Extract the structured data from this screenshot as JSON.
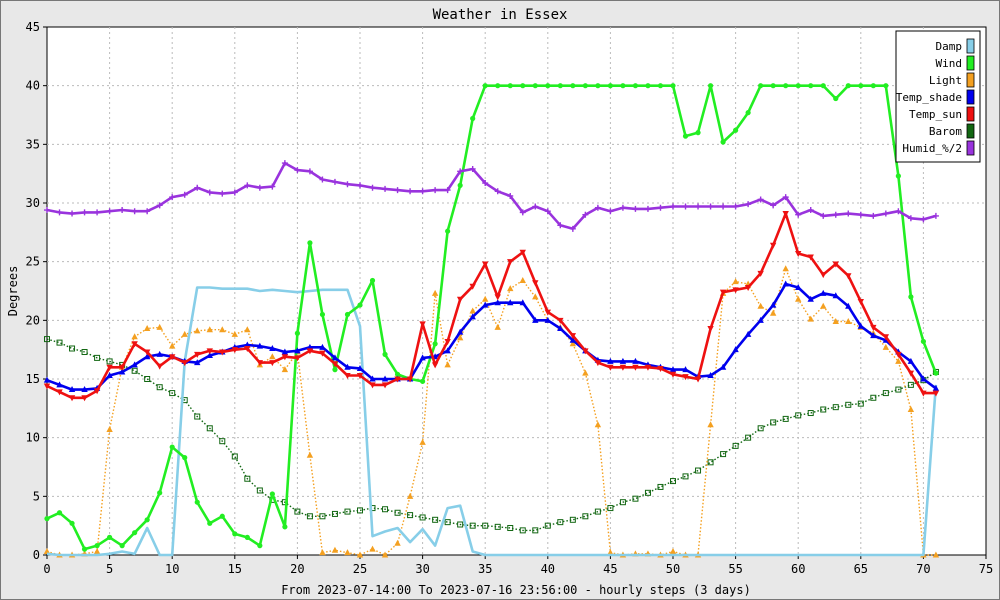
{
  "chart_data": {
    "type": "line",
    "title": "Weather in Essex",
    "xlabel": "From 2023-07-14:00 To 2023-07-16 23:56:00 - hourly steps (3 days)",
    "ylabel": "Degrees",
    "xlim": [
      0,
      75
    ],
    "ylim": [
      0,
      45
    ],
    "xticks": [
      0,
      5,
      10,
      15,
      20,
      25,
      30,
      35,
      40,
      45,
      50,
      55,
      60,
      65,
      70,
      75
    ],
    "yticks": [
      0,
      5,
      10,
      15,
      20,
      25,
      30,
      35,
      40,
      45
    ],
    "grid": true,
    "legend_position": "top-right",
    "series": [
      {
        "name": "Damp",
        "color": "#87cee8",
        "style": "solid",
        "marker": "none",
        "x": [
          0,
          1,
          2,
          3,
          4,
          5,
          6,
          7,
          8,
          9,
          10,
          11,
          12,
          13,
          14,
          15,
          16,
          17,
          18,
          19,
          20,
          21,
          22,
          23,
          24,
          25,
          26,
          27,
          28,
          29,
          30,
          31,
          32,
          33,
          34,
          35,
          36,
          37,
          38,
          39,
          40,
          41,
          42,
          43,
          44,
          45,
          46,
          47,
          48,
          49,
          50,
          51,
          52,
          53,
          54,
          55,
          56,
          57,
          58,
          59,
          60,
          61,
          62,
          63,
          64,
          65,
          66,
          67,
          68,
          69,
          70,
          71
        ],
        "y": [
          0.1,
          0,
          0,
          0,
          0,
          0.1,
          0.3,
          0.1,
          2.3,
          0,
          0,
          16.5,
          22.8,
          22.8,
          22.7,
          22.7,
          22.7,
          22.5,
          22.6,
          22.5,
          22.4,
          22.5,
          22.6,
          22.6,
          22.6,
          19.5,
          1.6,
          2.0,
          2.3,
          1.1,
          2.2,
          0.8,
          4.0,
          4.2,
          0.3,
          0,
          0,
          0,
          0,
          0,
          0,
          0,
          0,
          0,
          0,
          0,
          0,
          0,
          0,
          0,
          0,
          0,
          0,
          0,
          0,
          0,
          0,
          0,
          0,
          0,
          0,
          0,
          0,
          0,
          0,
          0,
          0,
          0,
          0,
          0,
          0,
          14.5
        ]
      },
      {
        "name": "Wind",
        "color": "#22ee22",
        "style": "solid",
        "marker": "circle",
        "x": [
          0,
          1,
          2,
          3,
          4,
          5,
          6,
          7,
          8,
          9,
          10,
          11,
          12,
          13,
          14,
          15,
          16,
          17,
          18,
          19,
          20,
          21,
          22,
          23,
          24,
          25,
          26,
          27,
          28,
          29,
          30,
          31,
          32,
          33,
          34,
          35,
          36,
          37,
          38,
          39,
          40,
          41,
          42,
          43,
          44,
          45,
          46,
          47,
          48,
          49,
          50,
          51,
          52,
          53,
          54,
          55,
          56,
          57,
          58,
          59,
          60,
          61,
          62,
          63,
          64,
          65,
          66,
          67,
          68,
          69,
          70,
          71
        ],
        "y": [
          3.1,
          3.6,
          2.7,
          0.5,
          0.8,
          1.5,
          0.8,
          1.9,
          3.0,
          5.3,
          9.2,
          8.3,
          4.5,
          2.7,
          3.3,
          1.8,
          1.5,
          0.8,
          5.2,
          2.4,
          18.9,
          26.6,
          20.5,
          15.8,
          20.5,
          21.3,
          23.4,
          17.1,
          15.4,
          15.0,
          14.8,
          18.0,
          27.6,
          31.5,
          37.2,
          40,
          40,
          40,
          40,
          40,
          40,
          40,
          40,
          40,
          40,
          40,
          40,
          40,
          40,
          40,
          40,
          35.7,
          36.0,
          40,
          35.2,
          36.2,
          37.7,
          40,
          40,
          40,
          40,
          40,
          40,
          38.9,
          40,
          40,
          40,
          40,
          32.3,
          22.0,
          18.2,
          15.5
        ]
      },
      {
        "name": "Light",
        "color": "#f4a020",
        "style": "dotted",
        "marker": "triangle",
        "x": [
          0,
          1,
          2,
          3,
          4,
          5,
          6,
          7,
          8,
          9,
          10,
          11,
          12,
          13,
          14,
          15,
          16,
          17,
          18,
          19,
          20,
          21,
          22,
          23,
          24,
          25,
          26,
          27,
          28,
          29,
          30,
          31,
          32,
          33,
          34,
          35,
          36,
          37,
          38,
          39,
          40,
          41,
          42,
          43,
          44,
          45,
          46,
          47,
          48,
          49,
          50,
          51,
          52,
          53,
          54,
          55,
          56,
          57,
          58,
          59,
          60,
          61,
          62,
          63,
          64,
          65,
          66,
          67,
          68,
          69,
          70,
          71
        ],
        "y": [
          0.3,
          0,
          0,
          0.1,
          0.3,
          10.7,
          16.0,
          18.6,
          19.3,
          19.4,
          17.8,
          18.8,
          19.1,
          19.2,
          19.2,
          18.8,
          19.2,
          16.2,
          16.9,
          15.8,
          17.3,
          8.5,
          0.2,
          0.4,
          0.2,
          0,
          0.5,
          0,
          1.0,
          5.0,
          9.6,
          22.3,
          16.2,
          18.5,
          20.8,
          21.8,
          19.4,
          22.7,
          23.4,
          22.0,
          20.0,
          19.4,
          18.0,
          15.5,
          11.1,
          0.2,
          0,
          0.1,
          0.1,
          0,
          0.3,
          0,
          0,
          11.1,
          22.3,
          23.3,
          23.1,
          21.2,
          20.6,
          24.4,
          21.8,
          20.1,
          21.2,
          19.9,
          19.9,
          19.4,
          18.9,
          17.7,
          16.5,
          12.4,
          0,
          0
        ]
      },
      {
        "name": "Temp_shade",
        "color": "#0000ee",
        "style": "solid",
        "marker": "triangle",
        "x": [
          0,
          1,
          2,
          3,
          4,
          5,
          6,
          7,
          8,
          9,
          10,
          11,
          12,
          13,
          14,
          15,
          16,
          17,
          18,
          19,
          20,
          21,
          22,
          23,
          24,
          25,
          26,
          27,
          28,
          29,
          30,
          31,
          32,
          33,
          34,
          35,
          36,
          37,
          38,
          39,
          40,
          41,
          42,
          43,
          44,
          45,
          46,
          47,
          48,
          49,
          50,
          51,
          52,
          53,
          54,
          55,
          56,
          57,
          58,
          59,
          60,
          61,
          62,
          63,
          64,
          65,
          66,
          67,
          68,
          69,
          70,
          71
        ],
        "y": [
          14.9,
          14.5,
          14.1,
          14.1,
          14.2,
          15.3,
          15.6,
          16.2,
          16.9,
          17.1,
          16.9,
          16.5,
          16.4,
          17.0,
          17.3,
          17.7,
          17.9,
          17.8,
          17.6,
          17.3,
          17.4,
          17.7,
          17.7,
          16.8,
          16.0,
          15.9,
          15.0,
          15.0,
          15.0,
          15.0,
          16.8,
          16.9,
          17.4,
          19.0,
          20.3,
          21.3,
          21.5,
          21.5,
          21.5,
          20.0,
          20.0,
          19.3,
          18.3,
          17.4,
          16.6,
          16.5,
          16.5,
          16.5,
          16.2,
          16.0,
          15.8,
          15.8,
          15.2,
          15.3,
          16.0,
          17.5,
          18.8,
          20.0,
          21.3,
          23.1,
          22.8,
          21.8,
          22.3,
          22.1,
          21.2,
          19.5,
          18.7,
          18.3,
          17.3,
          16.5,
          15.0,
          14.2
        ]
      },
      {
        "name": "Temp_sun",
        "color": "#ee1111",
        "style": "solid",
        "marker": "triangle-down",
        "x": [
          0,
          1,
          2,
          3,
          4,
          5,
          6,
          7,
          8,
          9,
          10,
          11,
          12,
          13,
          14,
          15,
          16,
          17,
          18,
          19,
          20,
          21,
          22,
          23,
          24,
          25,
          26,
          27,
          28,
          29,
          30,
          31,
          32,
          33,
          34,
          35,
          36,
          37,
          38,
          39,
          40,
          41,
          42,
          43,
          44,
          45,
          46,
          47,
          48,
          49,
          50,
          51,
          52,
          53,
          54,
          55,
          56,
          57,
          58,
          59,
          60,
          61,
          62,
          63,
          64,
          65,
          66,
          67,
          68,
          69,
          70,
          71
        ],
        "y": [
          14.4,
          13.9,
          13.4,
          13.4,
          14.0,
          16.0,
          16.0,
          18.0,
          17.3,
          16.1,
          16.9,
          16.4,
          17.1,
          17.4,
          17.3,
          17.5,
          17.6,
          16.4,
          16.4,
          16.9,
          16.8,
          17.4,
          17.2,
          16.3,
          15.3,
          15.3,
          14.5,
          14.5,
          15.0,
          15.0,
          19.7,
          16.2,
          18.2,
          21.8,
          22.9,
          24.8,
          22.0,
          25.0,
          25.8,
          23.2,
          20.7,
          20.0,
          18.7,
          17.4,
          16.4,
          16.0,
          16.0,
          16.0,
          16.0,
          15.9,
          15.4,
          15.2,
          15.0,
          19.3,
          22.4,
          22.6,
          22.8,
          24.0,
          26.4,
          29.1,
          25.7,
          25.4,
          23.9,
          24.8,
          23.8,
          21.6,
          19.4,
          18.6,
          17.1,
          15.5,
          13.8,
          13.8
        ]
      },
      {
        "name": "Barom",
        "color": "#116611",
        "style": "dotted",
        "marker": "square",
        "x": [
          0,
          1,
          2,
          3,
          4,
          5,
          6,
          7,
          8,
          9,
          10,
          11,
          12,
          13,
          14,
          15,
          16,
          17,
          18,
          19,
          20,
          21,
          22,
          23,
          24,
          25,
          26,
          27,
          28,
          29,
          30,
          31,
          32,
          33,
          34,
          35,
          36,
          37,
          38,
          39,
          40,
          41,
          42,
          43,
          44,
          45,
          46,
          47,
          48,
          49,
          50,
          51,
          52,
          53,
          54,
          55,
          56,
          57,
          58,
          59,
          60,
          61,
          62,
          63,
          64,
          65,
          66,
          67,
          68,
          69,
          70,
          71
        ],
        "y": [
          18.4,
          18.1,
          17.6,
          17.3,
          16.8,
          16.5,
          16.2,
          15.7,
          15.0,
          14.3,
          13.8,
          13.2,
          11.8,
          10.8,
          9.7,
          8.4,
          6.5,
          5.5,
          4.7,
          4.5,
          3.7,
          3.3,
          3.3,
          3.5,
          3.7,
          3.8,
          4.0,
          3.9,
          3.6,
          3.4,
          3.2,
          3.0,
          2.8,
          2.6,
          2.5,
          2.5,
          2.4,
          2.3,
          2.1,
          2.1,
          2.5,
          2.8,
          3.0,
          3.3,
          3.7,
          4.0,
          4.5,
          4.8,
          5.3,
          5.8,
          6.3,
          6.7,
          7.2,
          7.9,
          8.6,
          9.3,
          10.0,
          10.8,
          11.3,
          11.6,
          11.9,
          12.1,
          12.4,
          12.6,
          12.8,
          12.9,
          13.4,
          13.8,
          14.1,
          14.5,
          14.9,
          15.6
        ]
      },
      {
        "name": "Humid_%/2",
        "color": "#9933dd",
        "style": "solid",
        "marker": "cross",
        "x": [
          0,
          1,
          2,
          3,
          4,
          5,
          6,
          7,
          8,
          9,
          10,
          11,
          12,
          13,
          14,
          15,
          16,
          17,
          18,
          19,
          20,
          21,
          22,
          23,
          24,
          25,
          26,
          27,
          28,
          29,
          30,
          31,
          32,
          33,
          34,
          35,
          36,
          37,
          38,
          39,
          40,
          41,
          42,
          43,
          44,
          45,
          46,
          47,
          48,
          49,
          50,
          51,
          52,
          53,
          54,
          55,
          56,
          57,
          58,
          59,
          60,
          61,
          62,
          63,
          64,
          65,
          66,
          67,
          68,
          69,
          70,
          71
        ],
        "y": [
          29.4,
          29.2,
          29.1,
          29.2,
          29.2,
          29.3,
          29.4,
          29.3,
          29.3,
          29.8,
          30.5,
          30.7,
          31.3,
          30.9,
          30.8,
          30.9,
          31.5,
          31.3,
          31.4,
          33.4,
          32.8,
          32.7,
          32.0,
          31.8,
          31.6,
          31.5,
          31.3,
          31.2,
          31.1,
          31.0,
          31.0,
          31.1,
          31.1,
          32.7,
          32.9,
          31.7,
          31.0,
          30.6,
          29.2,
          29.7,
          29.3,
          28.1,
          27.8,
          29.0,
          29.6,
          29.3,
          29.6,
          29.5,
          29.5,
          29.6,
          29.7,
          29.7,
          29.7,
          29.7,
          29.7,
          29.7,
          29.9,
          30.3,
          29.8,
          30.5,
          29.0,
          29.4,
          28.9,
          29.0,
          29.1,
          29.0,
          28.9,
          29.1,
          29.3,
          28.7,
          28.6,
          28.9
        ]
      }
    ]
  }
}
